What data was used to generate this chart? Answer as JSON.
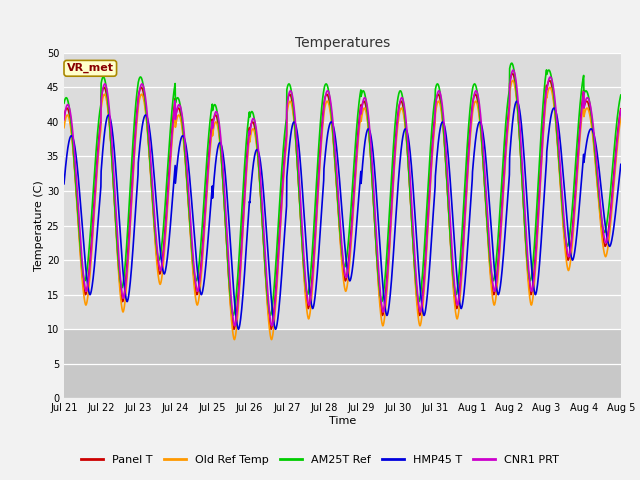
{
  "title": "Temperatures",
  "xlabel": "Time",
  "ylabel": "Temperature (C)",
  "ylim": [
    0,
    50
  ],
  "yticks": [
    0,
    5,
    10,
    15,
    20,
    25,
    30,
    35,
    40,
    45,
    50
  ],
  "date_labels": [
    "Jul 21",
    "Jul 22",
    "Jul 23",
    "Jul 24",
    "Jul 25",
    "Jul 26",
    "Jul 27",
    "Jul 28",
    "Jul 29",
    "Jul 30",
    "Jul 31",
    "Aug 1",
    "Aug 2",
    "Aug 3",
    "Aug 4",
    "Aug 5"
  ],
  "annotation": "VR_met",
  "series": {
    "Panel T": {
      "color": "#cc0000",
      "lw": 1.2
    },
    "Old Ref Temp": {
      "color": "#ff9900",
      "lw": 1.2
    },
    "AM25T Ref": {
      "color": "#00cc00",
      "lw": 1.2
    },
    "HMP45 T": {
      "color": "#0000dd",
      "lw": 1.2
    },
    "CNR1 PRT": {
      "color": "#cc00cc",
      "lw": 1.2
    }
  },
  "legend_order": [
    "Panel T",
    "Old Ref Temp",
    "AM25T Ref",
    "HMP45 T",
    "CNR1 PRT"
  ],
  "plot_bg_color": "#dcdcdc",
  "outer_bg": "#f2f2f2",
  "n_days": 15,
  "pts_per_day": 144,
  "daily_mins": [
    15,
    14,
    18,
    15,
    10,
    10,
    13,
    17,
    12,
    12,
    13,
    15,
    15,
    20,
    22
  ],
  "daily_maxs": [
    42,
    45,
    45,
    42,
    41,
    40,
    44,
    44,
    43,
    43,
    44,
    44,
    47,
    46,
    43
  ],
  "hmp_phase_shift": 0.12,
  "title_fontsize": 10,
  "tick_fontsize": 7,
  "label_fontsize": 8,
  "legend_fontsize": 8
}
